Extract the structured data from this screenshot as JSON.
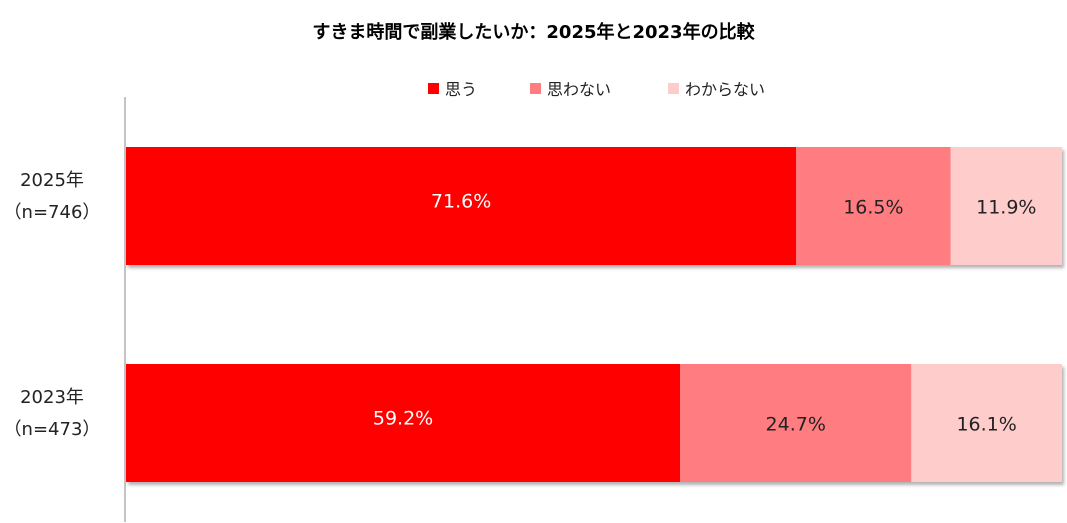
{
  "chart_data": {
    "type": "bar",
    "orientation": "horizontal",
    "stacked": true,
    "percent_stacked": true,
    "title": "すきま時間で副業したいか：2025年と2023年の比較",
    "categories": [
      {
        "label": "2025年",
        "sublabel": "（n=746）"
      },
      {
        "label": "2023年",
        "sublabel": "（n=473）"
      }
    ],
    "series": [
      {
        "name": "思う",
        "color": "#ff0000",
        "label_color": "#ffffff",
        "values": [
          71.6,
          59.2
        ],
        "labels": [
          "71.6%",
          "59.2%"
        ]
      },
      {
        "name": "思わない",
        "color": "#ff7c80",
        "label_color": "#222222",
        "values": [
          16.5,
          24.7
        ],
        "labels": [
          "16.5%",
          "24.7%"
        ]
      },
      {
        "name": "わからない",
        "color": "#ffcccc",
        "label_color": "#222222",
        "values": [
          11.9,
          16.1
        ],
        "labels": [
          "11.9%",
          "16.1%"
        ]
      }
    ],
    "xlim": [
      0,
      100
    ],
    "legend_position": "top",
    "grid": false
  }
}
